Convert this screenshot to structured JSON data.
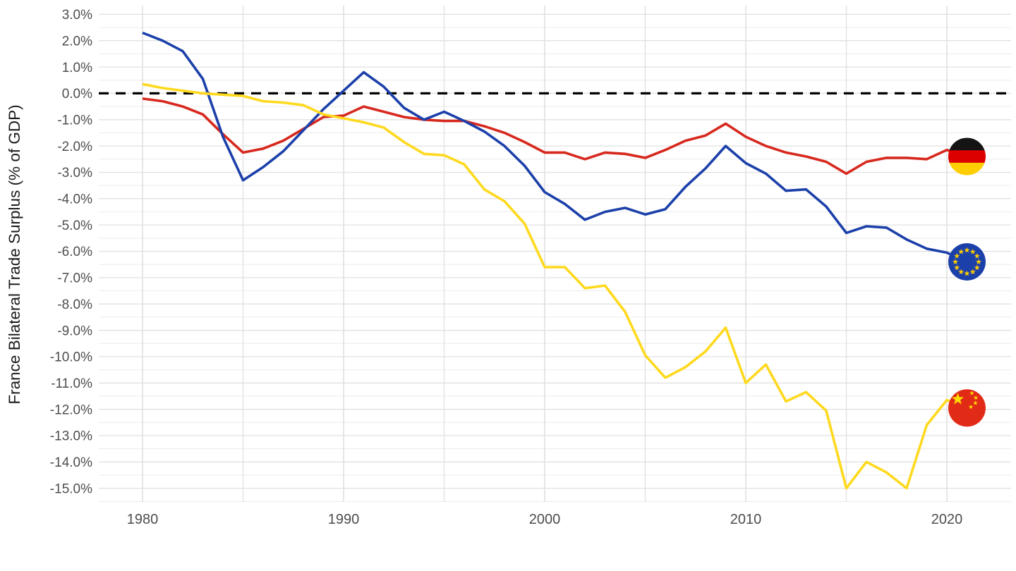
{
  "page": {
    "background": "#ffffff"
  },
  "y_axis": {
    "title": "France Bilateral Trade Surplus (% of GDP)",
    "tick_values": [
      3,
      2,
      1,
      0,
      -1,
      -2,
      -3,
      -4,
      -5,
      -6,
      -7,
      -8,
      -9,
      -10,
      -11,
      -12,
      -13,
      -14,
      -15
    ],
    "tick_labels": [
      "3.0%",
      "2.0%",
      "1.0%",
      "0.0%",
      "-1.0%",
      "-2.0%",
      "-3.0%",
      "-4.0%",
      "-5.0%",
      "-6.0%",
      "-7.0%",
      "-8.0%",
      "-9.0%",
      "-10.0%",
      "-11.0%",
      "-12.0%",
      "-13.0%",
      "-14.0%",
      "-15.0%"
    ]
  },
  "x_axis": {
    "tick_values": [
      1980,
      1990,
      2000,
      2010,
      2020
    ],
    "tick_labels": [
      "1980",
      "1990",
      "2000",
      "2010",
      "2020"
    ]
  },
  "zero_line": {
    "value": 0,
    "style": "dashed",
    "color": "#000000"
  },
  "chart_data": {
    "type": "line",
    "title": "",
    "xlabel": "",
    "ylabel": "France Bilateral Trade Surplus (% of GDP)",
    "xlim": [
      1977.8,
      2023.2
    ],
    "ylim": [
      -15.5,
      3.3
    ],
    "grid": "horizontal major every 1.0%, minor every 0.5%; vertical every 5 years",
    "legend_position": "end-of-line flag icons",
    "x": [
      1980,
      1981,
      1982,
      1983,
      1984,
      1985,
      1986,
      1987,
      1988,
      1989,
      1990,
      1991,
      1992,
      1993,
      1994,
      1995,
      1996,
      1997,
      1998,
      1999,
      2000,
      2001,
      2002,
      2003,
      2004,
      2005,
      2006,
      2007,
      2008,
      2009,
      2010,
      2011,
      2012,
      2013,
      2014,
      2015,
      2016,
      2017,
      2018,
      2019,
      2020,
      2021
    ],
    "series": [
      {
        "name": "Germany",
        "flag": "germany",
        "color": "#D7281E",
        "values": [
          -0.2,
          -0.3,
          -0.5,
          -0.8,
          -1.55,
          -2.25,
          -2.1,
          -1.8,
          -1.35,
          -0.9,
          -0.85,
          -0.5,
          -0.7,
          -0.9,
          -1.0,
          -1.05,
          -1.05,
          -1.25,
          -1.5,
          -1.85,
          -2.25,
          -2.25,
          -2.5,
          -2.25,
          -2.3,
          -2.45,
          -2.15,
          -1.8,
          -1.6,
          -1.15,
          -1.65,
          -2.0,
          -2.25,
          -2.4,
          -2.6,
          -3.05,
          -2.6,
          -2.45,
          -2.45,
          -2.5,
          -2.15,
          -2.4
        ]
      },
      {
        "name": "European Union",
        "flag": "eu",
        "color": "#1C40AA",
        "values": [
          2.3,
          2.0,
          1.6,
          0.55,
          -1.65,
          -3.3,
          -2.8,
          -2.2,
          -1.4,
          -0.6,
          0.1,
          0.8,
          0.25,
          -0.55,
          -1.0,
          -0.7,
          -1.05,
          -1.45,
          -2.0,
          -2.75,
          -3.75,
          -4.2,
          -4.8,
          -4.5,
          -4.35,
          -4.6,
          -4.4,
          -3.55,
          -2.85,
          -2.0,
          -2.65,
          -3.05,
          -3.7,
          -3.65,
          -4.3,
          -5.3,
          -5.05,
          -5.1,
          -5.55,
          -5.9,
          -6.05,
          -6.4
        ]
      },
      {
        "name": "China",
        "flag": "china",
        "color": "#FFD91E",
        "values": [
          0.35,
          0.2,
          0.1,
          0.0,
          -0.05,
          -0.1,
          -0.3,
          -0.35,
          -0.45,
          -0.8,
          -0.95,
          -1.1,
          -1.3,
          -1.85,
          -2.3,
          -2.35,
          -2.7,
          -3.65,
          -4.1,
          -4.95,
          -6.6,
          -6.6,
          -7.4,
          -7.3,
          -8.3,
          -9.95,
          -10.8,
          -10.4,
          -9.8,
          -8.9,
          -11.0,
          -10.3,
          -11.7,
          -11.35,
          -12.05,
          -15.0,
          -14.0,
          -14.4,
          -15.0,
          -12.6,
          -11.65,
          -11.95
        ]
      }
    ],
    "end_labels": [
      {
        "series": "Germany",
        "icon": "germany-flag-icon",
        "year": 2021,
        "value": -2.4
      },
      {
        "series": "European Union",
        "icon": "eu-flag-icon",
        "year": 2021,
        "value": -6.4
      },
      {
        "series": "China",
        "icon": "china-flag-icon",
        "year": 2021,
        "value": -11.95
      }
    ],
    "flag_colors": {
      "germany": {
        "black": "#141414",
        "red": "#DD0000",
        "gold": "#FFCE00"
      },
      "eu": {
        "background": "#1C40AA",
        "stars": "#FFCC00"
      },
      "china": {
        "background": "#E22B17",
        "stars": "#FFDE00"
      }
    },
    "grid_colors": {
      "minor": "#EDEDED",
      "major": "#E0E0E0",
      "vertical": "#E2E2E2"
    }
  }
}
